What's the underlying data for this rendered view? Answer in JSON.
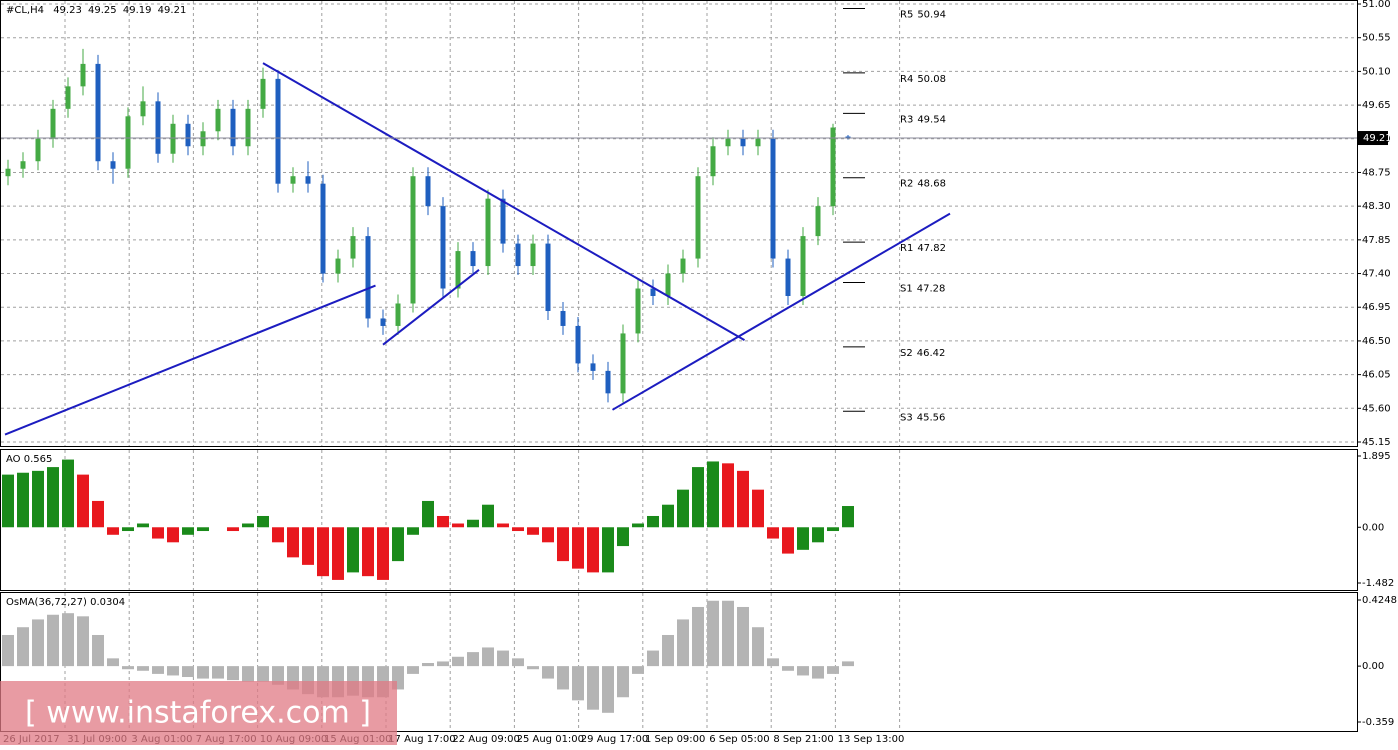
{
  "header": {
    "symbol": "#CL,H4"
  },
  "watermark": "[ www.instaforex.com ]",
  "chart_data": [
    {
      "type": "candlestick",
      "open": [
        48.7,
        48.8,
        48.9,
        49.2,
        49.6,
        49.9,
        50.2,
        48.9,
        48.8,
        49.5,
        49.7,
        49.0,
        49.4,
        49.1,
        49.3,
        49.6,
        49.1,
        49.6,
        50.0,
        48.6,
        48.7,
        48.6,
        47.4,
        47.6,
        47.9,
        46.8,
        46.7,
        47.0,
        48.7,
        48.3,
        47.2,
        47.7,
        47.5,
        48.4,
        47.8,
        47.5,
        47.8,
        46.9,
        46.7,
        46.2,
        46.1,
        45.8,
        46.6,
        47.2,
        47.1,
        47.4,
        47.6,
        48.7,
        49.1,
        49.2,
        49.1,
        49.2,
        47.6,
        47.1,
        47.9,
        48.3,
        49.23
      ],
      "high": [
        48.92,
        49.02,
        49.32,
        49.72,
        50.02,
        50.4,
        50.32,
        49.02,
        49.62,
        49.9,
        49.82,
        49.52,
        49.52,
        49.42,
        49.72,
        49.72,
        49.72,
        50.15,
        50.12,
        48.82,
        48.9,
        48.72,
        47.72,
        48.02,
        48.02,
        46.92,
        47.12,
        48.82,
        48.82,
        48.42,
        47.82,
        47.82,
        48.52,
        48.52,
        47.92,
        47.92,
        47.92,
        47.02,
        46.82,
        46.32,
        46.22,
        46.72,
        47.32,
        47.32,
        47.52,
        47.72,
        48.82,
        49.22,
        49.32,
        49.32,
        49.32,
        49.32,
        47.72,
        48.02,
        48.42,
        49.4,
        49.25
      ],
      "low": [
        48.58,
        48.68,
        48.78,
        49.08,
        49.48,
        49.78,
        48.78,
        48.6,
        48.68,
        49.38,
        48.88,
        48.88,
        48.98,
        48.98,
        49.18,
        48.98,
        48.98,
        49.48,
        48.48,
        48.48,
        48.48,
        47.28,
        47.28,
        47.48,
        46.68,
        46.58,
        46.58,
        46.88,
        48.18,
        47.08,
        47.08,
        47.38,
        47.38,
        47.68,
        47.38,
        47.38,
        46.78,
        46.58,
        46.08,
        45.98,
        45.68,
        45.68,
        46.48,
        46.98,
        46.98,
        47.28,
        47.48,
        48.58,
        48.98,
        48.98,
        48.98,
        47.48,
        46.98,
        46.98,
        47.78,
        48.18,
        49.19
      ],
      "close": [
        48.8,
        48.9,
        49.2,
        49.6,
        49.9,
        50.2,
        48.9,
        48.8,
        49.5,
        49.7,
        49.0,
        49.4,
        49.1,
        49.3,
        49.6,
        49.1,
        49.6,
        50.0,
        48.6,
        48.7,
        48.6,
        47.4,
        47.6,
        47.9,
        46.8,
        46.7,
        47.0,
        48.7,
        48.3,
        47.2,
        47.7,
        47.5,
        48.4,
        47.8,
        47.5,
        47.8,
        46.9,
        46.7,
        46.2,
        46.1,
        45.8,
        46.6,
        47.2,
        47.1,
        47.4,
        47.6,
        48.7,
        49.1,
        49.2,
        49.1,
        49.2,
        47.6,
        47.1,
        47.9,
        48.3,
        49.35,
        49.21
      ],
      "up_color": "#44aa44",
      "down_color": "#1f5fbf",
      "ylim": [
        45.15,
        51.0
      ],
      "yticks": [
        {
          "value": 51.0,
          "label": "51.00"
        },
        {
          "value": 50.55,
          "label": "50.55"
        },
        {
          "value": 50.1,
          "label": "50.10"
        },
        {
          "value": 49.65,
          "label": "49.65"
        },
        {
          "value": 49.2,
          "label": "49.20"
        },
        {
          "value": 48.75,
          "label": "48.75"
        },
        {
          "value": 48.3,
          "label": "48.30"
        },
        {
          "value": 47.85,
          "label": "47.85"
        },
        {
          "value": 47.4,
          "label": "47.40"
        },
        {
          "value": 46.95,
          "label": "46.95"
        },
        {
          "value": 46.5,
          "label": "46.50"
        },
        {
          "value": 46.05,
          "label": "46.05"
        },
        {
          "value": 45.6,
          "label": "45.60"
        },
        {
          "value": 45.15,
          "label": "45.15"
        }
      ],
      "grid": true,
      "pivots": [
        {
          "name": "R5",
          "value": 50.94
        },
        {
          "name": "R4",
          "value": 50.08
        },
        {
          "name": "R3",
          "value": 49.54
        },
        {
          "name": "R2",
          "value": 48.68
        },
        {
          "name": "R1",
          "value": 47.82
        },
        {
          "name": "S1",
          "value": 47.28
        },
        {
          "name": "S2",
          "value": 46.42
        },
        {
          "name": "S3",
          "value": 45.56
        }
      ],
      "trendline_color": "#1c1cc0",
      "trendlines": [
        {
          "x": [
            -0.2,
            24.5
          ],
          "y": [
            45.25,
            47.24
          ]
        },
        {
          "x": [
            17,
            49.1
          ],
          "y": [
            50.21,
            46.51
          ]
        },
        {
          "x": [
            25,
            31.4
          ],
          "y": [
            46.45,
            47.45
          ]
        },
        {
          "x": [
            40.3,
            62.8
          ],
          "y": [
            45.58,
            48.2
          ]
        }
      ],
      "x_tick_labels": [
        "26 Jul 2017",
        "31 Jul 09:00",
        "3 Aug 01:00",
        "7 Aug 17:00",
        "10 Aug 09:00",
        "15 Aug 01:00",
        "17 Aug 17:00",
        "22 Aug 09:00",
        "25 Aug 01:00",
        "29 Aug 17:00",
        "1 Sep 09:00",
        "6 Sep 05:00",
        "8 Sep 21:00",
        "13 Sep 13:00"
      ]
    },
    {
      "type": "bar",
      "title": "AO",
      "values": [
        1.4,
        1.45,
        1.5,
        1.6,
        1.8,
        1.4,
        0.7,
        -0.2,
        -0.1,
        0.1,
        -0.3,
        -0.4,
        -0.2,
        -0.1,
        0.0,
        -0.1,
        0.1,
        0.3,
        -0.4,
        -0.8,
        -1.0,
        -1.3,
        -1.4,
        -1.2,
        -1.3,
        -1.4,
        -0.9,
        -0.2,
        0.7,
        0.3,
        0.1,
        0.2,
        0.6,
        0.1,
        -0.1,
        -0.2,
        -0.4,
        -0.9,
        -1.1,
        -1.2,
        -1.2,
        -0.5,
        0.1,
        0.3,
        0.6,
        1.0,
        1.6,
        1.75,
        1.7,
        1.5,
        1.0,
        -0.3,
        -0.7,
        -0.6,
        -0.4,
        -0.1,
        0.565
      ],
      "up_color": "#1a8a1a",
      "down_color": "#e8181e",
      "ylim": [
        -1.482,
        1.895
      ],
      "yticks": [
        1.895,
        {
          "value": 0,
          "label": "0.00"
        },
        -1.482
      ]
    },
    {
      "type": "bar",
      "title": "OsMA(36,72,27)",
      "values": [
        0.2,
        0.25,
        0.3,
        0.33,
        0.34,
        0.32,
        0.2,
        0.05,
        -0.02,
        -0.03,
        -0.05,
        -0.06,
        -0.07,
        -0.08,
        -0.08,
        -0.09,
        -0.1,
        -0.1,
        -0.12,
        -0.15,
        -0.18,
        -0.2,
        -0.2,
        -0.19,
        -0.2,
        -0.2,
        -0.15,
        -0.05,
        0.02,
        0.03,
        0.06,
        0.09,
        0.12,
        0.1,
        0.05,
        -0.02,
        -0.08,
        -0.15,
        -0.22,
        -0.28,
        -0.3,
        -0.2,
        -0.05,
        0.1,
        0.2,
        0.3,
        0.38,
        0.42,
        0.42,
        0.38,
        0.25,
        0.05,
        -0.03,
        -0.06,
        -0.08,
        -0.05,
        0.0304
      ],
      "color": "#b4b4b4",
      "ylim": [
        -0.359,
        0.4248
      ],
      "yticks": [
        0.4248,
        {
          "value": 0,
          "label": "0.00"
        },
        -0.359
      ]
    }
  ]
}
